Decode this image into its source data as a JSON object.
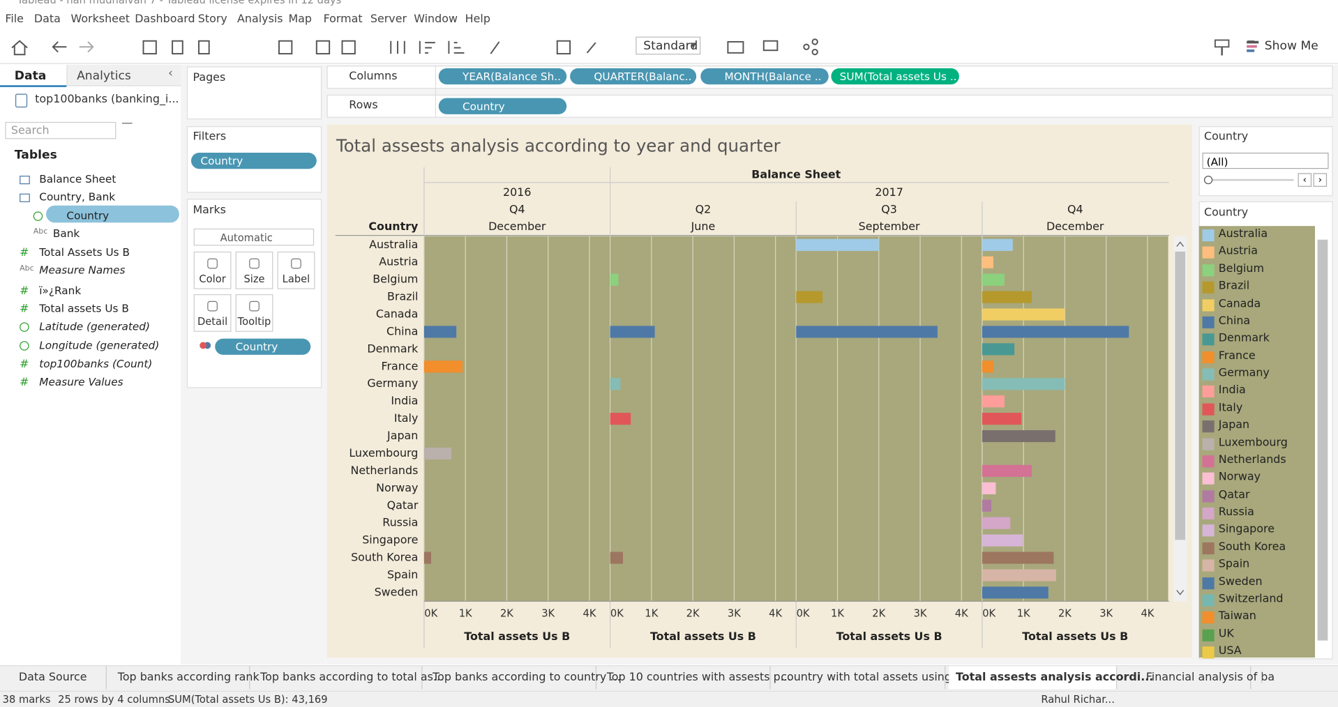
{
  "window_title": "Tableau - nan mudhalvan 7 - Tableau license expires in 12 days",
  "menu": [
    "File",
    "Data",
    "Worksheet",
    "Dashboard",
    "Story",
    "Analysis",
    "Map",
    "Format",
    "Server",
    "Window",
    "Help"
  ],
  "toolbar": {
    "fit": "Standard",
    "show_me": "Show Me"
  },
  "data_pane": {
    "tabs": [
      "Data",
      "Analytics"
    ],
    "source": "top100banks (banking_i...",
    "search": "Search",
    "tables_heading": "Tables",
    "fields": [
      {
        "name": "Balance Sheet"
      },
      {
        "name": "Country, Bank"
      },
      {
        "name": "Country"
      },
      {
        "name": "Bank",
        "icon": "Abc"
      },
      {
        "name": "Total Assets Us B",
        "icon": "#"
      },
      {
        "name": "Measure Names",
        "icon": "Abc"
      },
      {
        "name": "ï»¿Rank",
        "icon": "#"
      },
      {
        "name": "Total assets Us B",
        "icon": "#"
      },
      {
        "name": "Latitude (generated)"
      },
      {
        "name": "Longitude (generated)"
      },
      {
        "name": "top100banks (Count)",
        "icon": "#"
      },
      {
        "name": "Measure Values",
        "icon": "#"
      }
    ]
  },
  "pages": "Pages",
  "filters": {
    "title": "Filters",
    "pill": "Country"
  },
  "marks": {
    "title": "Marks",
    "type": "Automatic",
    "buttons": [
      "Color",
      "Size",
      "Label",
      "Detail",
      "Tooltip"
    ],
    "pill": "Country"
  },
  "shelves": {
    "columns_label": "Columns",
    "columns": [
      "YEAR(Balance Sh..",
      "QUARTER(Balanc..",
      "MONTH(Balance ..",
      "SUM(Total assets Us .."
    ],
    "rows_label": "Rows",
    "rows": [
      "Country"
    ]
  },
  "chart_data": {
    "type": "bar",
    "title": "Total assests analysis according to year and quarter",
    "column_header": "Balance Sheet",
    "row_header": "Country",
    "x_label": "Total assets Us B",
    "categories": [
      "Australia",
      "Austria",
      "Belgium",
      "Brazil",
      "Canada",
      "China",
      "Denmark",
      "France",
      "Germany",
      "India",
      "Italy",
      "Japan",
      "Luxembourg",
      "Netherlands",
      "Norway",
      "Qatar",
      "Russia",
      "Singapore",
      "South Korea",
      "Spain",
      "Sweden"
    ],
    "xlim": [
      0,
      4.5
    ],
    "xticks": [
      {
        "value": 0,
        "label": "0K"
      },
      {
        "value": 1,
        "label": "1K"
      },
      {
        "value": 2,
        "label": "2K"
      },
      {
        "value": 3,
        "label": "3K"
      },
      {
        "value": 4,
        "label": "4K"
      }
    ],
    "grid": true,
    "panels": [
      {
        "year": "2016",
        "quarter": "Q4",
        "month": "December",
        "values": [
          null,
          null,
          null,
          null,
          null,
          0.78,
          null,
          0.93,
          null,
          null,
          null,
          null,
          0.66,
          null,
          null,
          null,
          null,
          null,
          0.17,
          null,
          null
        ]
      },
      {
        "year": "2017",
        "quarter": "Q2",
        "month": "June",
        "values": [
          null,
          null,
          0.2,
          null,
          null,
          1.08,
          null,
          null,
          0.25,
          null,
          0.5,
          null,
          null,
          null,
          null,
          null,
          null,
          null,
          0.31,
          null,
          null
        ]
      },
      {
        "year": "2017",
        "quarter": "Q3",
        "month": "September",
        "values": [
          2.0,
          null,
          null,
          0.64,
          null,
          3.42,
          null,
          null,
          null,
          null,
          null,
          null,
          null,
          null,
          null,
          null,
          null,
          null,
          null,
          null,
          null
        ]
      },
      {
        "year": "2017",
        "quarter": "Q4",
        "month": "December",
        "values": [
          0.74,
          0.27,
          0.54,
          1.2,
          2.0,
          3.55,
          0.78,
          0.27,
          2.0,
          0.54,
          0.95,
          1.77,
          null,
          1.2,
          0.33,
          0.22,
          0.68,
          0.98,
          1.73,
          1.79,
          1.6
        ]
      }
    ],
    "legend": {
      "title": "Country",
      "items": [
        {
          "name": "Australia",
          "color": "#a0cbe8"
        },
        {
          "name": "Austria",
          "color": "#ffbe7d"
        },
        {
          "name": "Belgium",
          "color": "#8cd17d"
        },
        {
          "name": "Brazil",
          "color": "#b6992d"
        },
        {
          "name": "Canada",
          "color": "#f1ce63"
        },
        {
          "name": "China",
          "color": "#4e79a7"
        },
        {
          "name": "Denmark",
          "color": "#499894"
        },
        {
          "name": "France",
          "color": "#f28e2b"
        },
        {
          "name": "Germany",
          "color": "#86bcb6"
        },
        {
          "name": "India",
          "color": "#ff9d9a"
        },
        {
          "name": "Italy",
          "color": "#e15759"
        },
        {
          "name": "Japan",
          "color": "#79706e"
        },
        {
          "name": "Luxembourg",
          "color": "#bab0ac"
        },
        {
          "name": "Netherlands",
          "color": "#d37295"
        },
        {
          "name": "Norway",
          "color": "#fabfd2"
        },
        {
          "name": "Qatar",
          "color": "#b07aa1"
        },
        {
          "name": "Russia",
          "color": "#d4a6c8"
        },
        {
          "name": "Singapore",
          "color": "#d7b5d8"
        },
        {
          "name": "South Korea",
          "color": "#9d7660"
        },
        {
          "name": "Spain",
          "color": "#d7b5a6"
        },
        {
          "name": "Sweden",
          "color": "#4e79a7"
        },
        {
          "name": "Switzerland",
          "color": "#76b7b2"
        },
        {
          "name": "Taiwan",
          "color": "#f28e2b"
        },
        {
          "name": "UK",
          "color": "#59a14f"
        },
        {
          "name": "USA",
          "color": "#edc948"
        }
      ]
    }
  },
  "filter_card": {
    "title": "Country",
    "value": "(All)"
  },
  "sheet_tabs": [
    "Data Source",
    "Top banks according rank",
    "Top banks according to total as...",
    "Top banks according to country ...",
    "Top 10 countries with  assests p...",
    "country with total assets using ...",
    "Total assests analysis accordi...",
    "Financial analysis of ba"
  ],
  "status": [
    "38 marks",
    "25 rows by 4 columns",
    "SUM(Total assets Us B): 43,169"
  ],
  "user": "Rahul Richar..."
}
